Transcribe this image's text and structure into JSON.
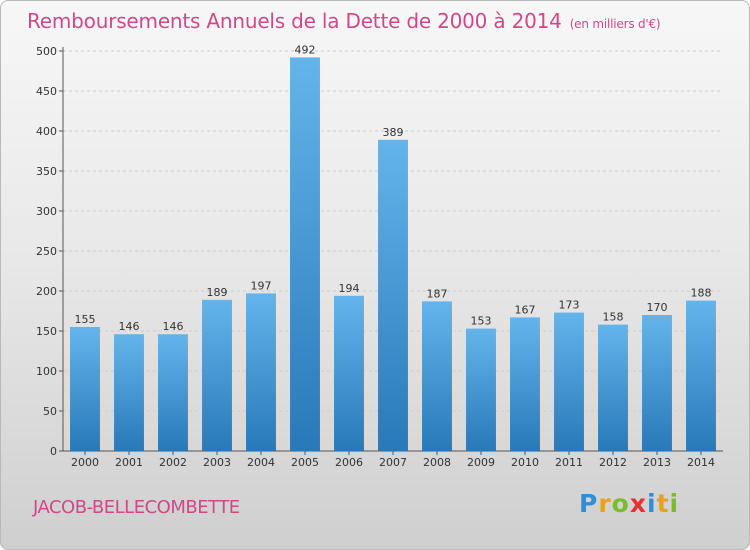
{
  "title": "Remboursements Annuels de la Dette de 2000 à 2014",
  "subtitle": "(en milliers d'€)",
  "commune": "JACOB-BELLECOMBETTE",
  "brand": {
    "text": "Proxiti",
    "letters": [
      {
        "char": "P",
        "color": "#2e8fd8"
      },
      {
        "char": "r",
        "color": "#e8a21a"
      },
      {
        "char": "o",
        "color": "#7dbb2e"
      },
      {
        "char": "x",
        "color": "#e8312f"
      },
      {
        "char": "i",
        "color": "#2e8fd8"
      },
      {
        "char": "t",
        "color": "#e8a21a"
      },
      {
        "char": "i",
        "color": "#7dbb2e"
      }
    ]
  },
  "colors": {
    "title": "#d0488a",
    "bar_top": "#64b4ec",
    "bar_bottom": "#2879b9",
    "grid": "#cccccc"
  },
  "chart_data": {
    "type": "bar",
    "categories": [
      "2000",
      "2001",
      "2002",
      "2003",
      "2004",
      "2005",
      "2006",
      "2007",
      "2008",
      "2009",
      "2010",
      "2011",
      "2012",
      "2013",
      "2014"
    ],
    "values": [
      155,
      146,
      146,
      189,
      197,
      492,
      194,
      389,
      187,
      153,
      167,
      173,
      158,
      170,
      188
    ],
    "ylim": [
      0,
      500
    ],
    "yticks": [
      0,
      50,
      100,
      150,
      200,
      250,
      300,
      350,
      400,
      450,
      500
    ],
    "grid": true,
    "data_labels": true
  }
}
